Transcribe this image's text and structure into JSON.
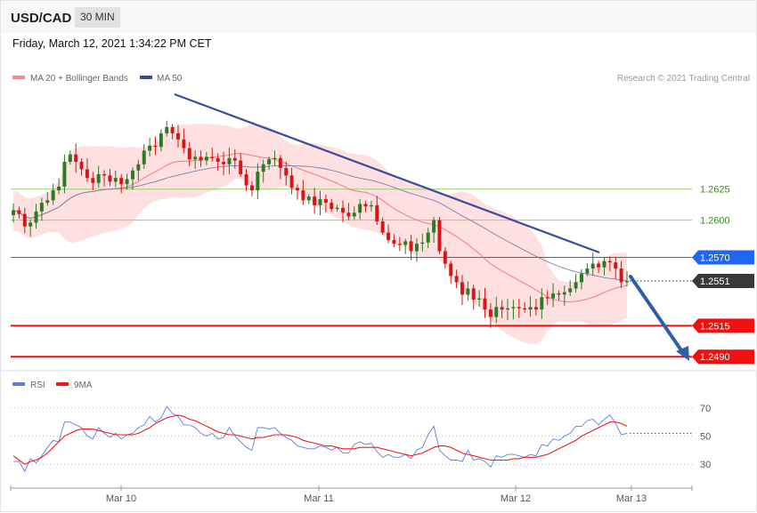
{
  "header": {
    "symbol": "USD/CAD",
    "timeframe": "30 MIN"
  },
  "datetime": "Friday, March 12, 2021 1:34:22 PM CET",
  "legend": {
    "ma20": "MA 20 + Bollinger Bands",
    "ma50": "MA 50",
    "copyright": "Research © 2021 Trading Central"
  },
  "rsi_legend": {
    "rsi": "RSI",
    "ma9": "9MA"
  },
  "colors": {
    "bull": "#2c7a22",
    "bear": "#d81414",
    "bands": "#ffd5d5",
    "ma20": "#f27a7a",
    "ma50": "#7c81a8",
    "trend": "#3b4d9a",
    "arrow": "#2f5ea8",
    "resistance": "#1f66f2",
    "support": "#f01010",
    "current": "#3a3a3a",
    "green_level": "#9ccf70",
    "rsi": "#5b7ee0",
    "rsi_ma": "#ef1c1c"
  },
  "chart_data": [
    {
      "type": "candlestick",
      "title": "USD/CAD",
      "ylim": [
        1.2483,
        1.2705
      ],
      "x_ticks": [
        "Mar 10",
        "Mar 11",
        "Mar 12",
        "Mar 13"
      ],
      "levels": [
        {
          "value": 1.2625,
          "label": "1.2625",
          "kind": "green"
        },
        {
          "value": 1.26,
          "label": "1.2600",
          "kind": "green"
        },
        {
          "value": 1.257,
          "label": "1.2570",
          "kind": "resistance"
        },
        {
          "value": 1.2551,
          "label": "1.2551",
          "kind": "current"
        },
        {
          "value": 1.2515,
          "label": "1.2515",
          "kind": "support"
        },
        {
          "value": 1.249,
          "label": "1.2490",
          "kind": "support"
        }
      ],
      "close": [
        1.2608,
        1.2605,
        1.2595,
        1.2598,
        1.2607,
        1.2614,
        1.2616,
        1.2624,
        1.2627,
        1.2647,
        1.2653,
        1.2647,
        1.2641,
        1.2634,
        1.263,
        1.2637,
        1.2636,
        1.2631,
        1.2634,
        1.2629,
        1.2633,
        1.264,
        1.2645,
        1.2656,
        1.266,
        1.2659,
        1.267,
        1.2675,
        1.267,
        1.2665,
        1.2658,
        1.2649,
        1.2651,
        1.2648,
        1.2651,
        1.265,
        1.2647,
        1.2645,
        1.265,
        1.2648,
        1.2637,
        1.2628,
        1.2624,
        1.2639,
        1.2645,
        1.2649,
        1.265,
        1.2642,
        1.2636,
        1.2626,
        1.2624,
        1.2616,
        1.2619,
        1.2612,
        1.2617,
        1.2614,
        1.2609,
        1.261,
        1.2606,
        1.2603,
        1.2606,
        1.2613,
        1.2611,
        1.2612,
        1.2599,
        1.259,
        1.2584,
        1.2581,
        1.258,
        1.2583,
        1.2575,
        1.2581,
        1.2582,
        1.259,
        1.26,
        1.2575,
        1.2565,
        1.2555,
        1.255,
        1.254,
        1.2545,
        1.2536,
        1.2537,
        1.2528,
        1.2522,
        1.253,
        1.2528,
        1.2529,
        1.253,
        1.2529,
        1.2528,
        1.253,
        1.2528,
        1.2538,
        1.2537,
        1.2541,
        1.254,
        1.2542,
        1.2545,
        1.255,
        1.2557,
        1.2561,
        1.2565,
        1.2562,
        1.2567,
        1.2566,
        1.2561,
        1.255,
        1.2551
      ]
    },
    {
      "type": "line",
      "title": "RSI",
      "ylim": [
        15,
        80
      ],
      "y_ticks": [
        30,
        50,
        70
      ],
      "series": [
        {
          "name": "RSI",
          "values": [
            32,
            32,
            25,
            34,
            31,
            36,
            42,
            47,
            46,
            60,
            60,
            58,
            56,
            50,
            48,
            56,
            52,
            49,
            52,
            48,
            51,
            52,
            56,
            58,
            64,
            60,
            63,
            71,
            66,
            64,
            58,
            58,
            56,
            52,
            50,
            52,
            48,
            49,
            56,
            50,
            46,
            42,
            40,
            56,
            56,
            55,
            56,
            52,
            49,
            47,
            43,
            42,
            41,
            41,
            43,
            42,
            40,
            42,
            38,
            38,
            44,
            46,
            44,
            45,
            39,
            35,
            37,
            35,
            35,
            37,
            34,
            40,
            42,
            51,
            57,
            40,
            36,
            33,
            33,
            32,
            40,
            33,
            34,
            32,
            28,
            36,
            35,
            37,
            37,
            36,
            35,
            37,
            36,
            44,
            43,
            48,
            47,
            50,
            52,
            57,
            57,
            61,
            62,
            58,
            62,
            65,
            59,
            51,
            52
          ]
        },
        {
          "name": "9MA",
          "values": [
            36,
            33,
            30,
            32,
            33,
            35,
            38,
            42,
            46,
            50,
            52,
            54,
            55,
            55,
            55,
            54,
            53,
            52,
            51,
            51,
            51,
            51,
            52,
            54,
            56,
            59,
            61,
            63,
            64,
            65,
            64,
            62,
            61,
            59,
            57,
            55,
            53,
            52,
            51,
            51,
            50,
            49,
            48,
            49,
            49,
            50,
            51,
            51,
            51,
            50,
            49,
            47,
            46,
            45,
            44,
            43,
            43,
            42,
            41,
            41,
            41,
            42,
            42,
            42,
            42,
            41,
            40,
            39,
            38,
            37,
            36,
            37,
            38,
            40,
            42,
            43,
            43,
            42,
            40,
            38,
            37,
            36,
            35,
            34,
            33,
            33,
            33,
            33,
            34,
            34,
            35,
            35,
            35,
            36,
            37,
            39,
            41,
            43,
            45,
            47,
            50,
            52,
            54,
            56,
            58,
            60,
            60,
            59,
            57
          ]
        }
      ]
    }
  ]
}
